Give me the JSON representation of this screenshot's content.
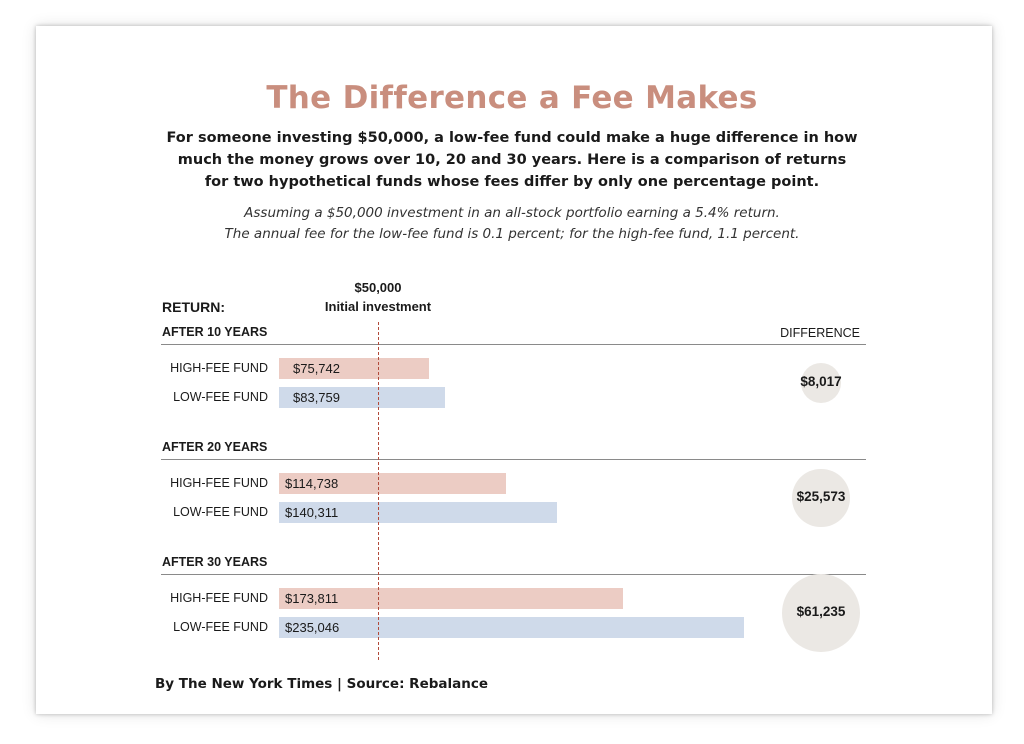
{
  "title": "The Difference a Fee Makes",
  "subtitle_lines": [
    "For someone investing $50,000, a low-fee fund could make a huge difference in how",
    "much the money grows over 10, 20 and 30 years. Here is a comparison of returns",
    "for two hypothetical funds whose fees differ by only one percentage point."
  ],
  "note_lines": [
    "Assuming a $50,000 investment in an all-stock portfolio earning a 5.4% return.",
    "The annual fee for the low-fee fund is 0.1 percent; for the high-fee fund, 1.1 percent."
  ],
  "return_label": "RETURN:",
  "initial_amount": "$50,000",
  "initial_label": "Initial investment",
  "difference_label": "DIFFERENCE",
  "footer": "By The New York Times | Source: Rebalance",
  "colors": {
    "title": "#c98e7e",
    "high_fee": "#ecccc4",
    "low_fee": "#cfdaea",
    "initial_line": "#b04a3a",
    "diff_circle": "#ebe8e4"
  },
  "chart_data": {
    "type": "bar",
    "orientation": "horizontal",
    "reference_line": {
      "value": 50000,
      "label": "Initial investment"
    },
    "groups": [
      {
        "label": "AFTER 10 YEARS",
        "high": {
          "name": "HIGH-FEE FUND",
          "value": 75742,
          "text": "$75,742"
        },
        "low": {
          "name": "LOW-FEE FUND",
          "value": 83759,
          "text": "$83,759"
        },
        "difference": {
          "value": 8017,
          "text": "$8,017"
        }
      },
      {
        "label": "AFTER 20 YEARS",
        "high": {
          "name": "HIGH-FEE FUND",
          "value": 114738,
          "text": "$114,738"
        },
        "low": {
          "name": "LOW-FEE FUND",
          "value": 140311,
          "text": "$140,311"
        },
        "difference": {
          "value": 25573,
          "text": "$25,573"
        }
      },
      {
        "label": "AFTER 30 YEARS",
        "high": {
          "name": "HIGH-FEE FUND",
          "value": 173811,
          "text": "$173,811"
        },
        "low": {
          "name": "LOW-FEE FUND",
          "value": 235046,
          "text": "$235,046"
        },
        "difference": {
          "value": 61235,
          "text": "$61,235"
        }
      }
    ]
  }
}
